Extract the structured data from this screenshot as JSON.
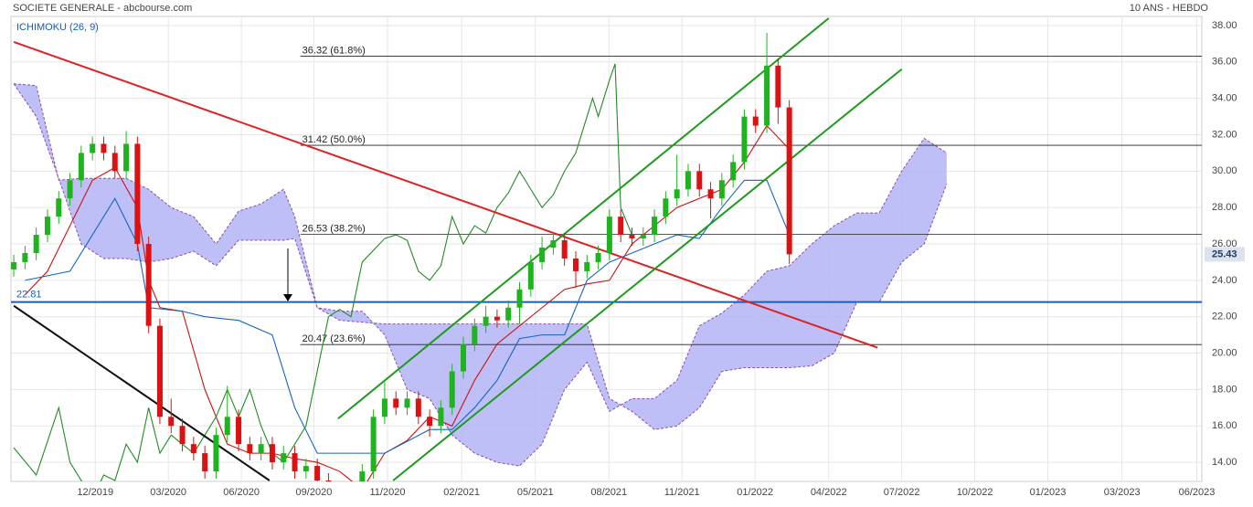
{
  "header": {
    "title": "SOCIETE GENERALE - abcbourse.com",
    "period": "10 ANS - HEBDO",
    "indicator": "ICHIMOKU (26, 9)"
  },
  "chart_data": {
    "type": "candlestick",
    "xlim": [
      -0.5,
      211.4
    ],
    "xticks": [
      {
        "value": 14.5,
        "label": "12/2019"
      },
      {
        "value": 27.5,
        "label": "03/2020"
      },
      {
        "value": 40.5,
        "label": "06/2020"
      },
      {
        "value": 53.4,
        "label": "09/2020"
      },
      {
        "value": 66.5,
        "label": "11/2020"
      },
      {
        "value": 79.7,
        "label": "02/2021"
      },
      {
        "value": 92.8,
        "label": "05/2021"
      },
      {
        "value": 105.9,
        "label": "08/2021"
      },
      {
        "value": 118.9,
        "label": "11/2021"
      },
      {
        "value": 131.9,
        "label": "01/2022"
      },
      {
        "value": 145,
        "label": "04/2022"
      },
      {
        "value": 158,
        "label": "07/2022"
      },
      {
        "value": 171,
        "label": "10/2022"
      },
      {
        "value": 184,
        "label": "01/2023"
      },
      {
        "value": 197.2,
        "label": "03/2023"
      },
      {
        "value": 210.5,
        "label": "06/2023"
      }
    ],
    "ylim": [
      12.95,
      38.5
    ],
    "yticks": [
      {
        "value": 14,
        "label": "14.00"
      },
      {
        "value": 16,
        "label": "16.00"
      },
      {
        "value": 18,
        "label": "18.00"
      },
      {
        "value": 20,
        "label": "20.00"
      },
      {
        "value": 22,
        "label": "22.00"
      },
      {
        "value": 24,
        "label": "24.00"
      },
      {
        "value": 26,
        "label": "26.00"
      },
      {
        "value": 28,
        "label": "28.00"
      },
      {
        "value": 30,
        "label": "30.00"
      },
      {
        "value": 32,
        "label": "32.00"
      },
      {
        "value": 34,
        "label": "34.00"
      },
      {
        "value": 36,
        "label": "36.00"
      },
      {
        "value": 38,
        "label": "38.00"
      }
    ],
    "grid": true,
    "up_color": "#1fb31f",
    "down_color": "#dd1111",
    "candles": {
      "x": [
        0,
        2,
        4,
        6,
        8,
        10,
        12,
        14,
        16,
        18,
        20,
        22,
        24,
        26,
        28,
        30,
        32,
        34,
        36,
        38,
        40,
        42,
        44,
        46,
        48,
        50,
        52,
        54,
        56,
        58,
        60,
        62,
        64,
        66,
        68,
        70,
        72,
        74,
        76,
        78,
        80,
        82,
        84,
        86,
        88,
        90,
        92,
        94,
        96,
        98,
        100,
        102,
        104,
        106,
        108,
        110,
        112,
        114,
        116,
        118,
        120,
        122,
        124,
        126,
        128,
        130,
        132,
        134,
        136,
        138
      ],
      "open": [
        24.6,
        25,
        25.5,
        26.5,
        27.5,
        28.5,
        29.5,
        31,
        31.5,
        31,
        30,
        31.5,
        26,
        21.5,
        16.5,
        16,
        15,
        14.5,
        13.5,
        15.5,
        16.5,
        15,
        14.5,
        15,
        14,
        14.5,
        13.5,
        13.8,
        13,
        12.5,
        12,
        12.5,
        13.5,
        16.5,
        17.5,
        17,
        17.5,
        16.5,
        16,
        17,
        19,
        20.5,
        21.5,
        22,
        21.8,
        22.5,
        23.5,
        25,
        25.8,
        26.2,
        25.2,
        24.5,
        25,
        25.5,
        27.5,
        26.5,
        26.3,
        26.5,
        27.5,
        28.5,
        29,
        30,
        29,
        28.5,
        29.5,
        30.5,
        33,
        32.5,
        35.8,
        33.5
      ],
      "high": [
        25.4,
        25.9,
        26.9,
        27.9,
        28.9,
        29.9,
        31.4,
        31.9,
        31.9,
        31.4,
        32.2,
        31.9,
        26.4,
        21.9,
        17.5,
        16.4,
        15.4,
        14.9,
        15.9,
        18.2,
        16.9,
        15.4,
        15.4,
        15.4,
        14.9,
        14.9,
        14.2,
        14.2,
        13.4,
        12.9,
        12.9,
        13.9,
        16.9,
        18.4,
        17.9,
        17.9,
        17.9,
        16.9,
        17.4,
        19.4,
        20.9,
        21.9,
        22.6,
        22.4,
        22.9,
        23.9,
        25.4,
        26.4,
        26.6,
        26.6,
        25.6,
        25.4,
        25.9,
        27.9,
        27.9,
        26.9,
        26.9,
        27.9,
        28.9,
        30.9,
        30.4,
        30.4,
        29.4,
        29.9,
        30.9,
        33.4,
        33.4,
        37.6,
        36.2,
        33.9
      ],
      "low": [
        24.2,
        24.6,
        25.1,
        26.1,
        27.1,
        28.1,
        29.1,
        30.6,
        30.6,
        29.6,
        29.6,
        25.6,
        21.1,
        16.1,
        15.6,
        14.6,
        14.1,
        13.1,
        13.1,
        15.1,
        14.6,
        14.1,
        14.1,
        13.6,
        13.6,
        13.1,
        13.1,
        12.6,
        12.1,
        11.6,
        11.6,
        12.1,
        13.1,
        16.1,
        16.6,
        16.6,
        16.1,
        15.4,
        15.6,
        16.6,
        18.6,
        20.1,
        21.1,
        21.4,
        21.4,
        21.6,
        23.1,
        24.6,
        25.4,
        24.8,
        23.6,
        24.1,
        24.6,
        25.1,
        26.1,
        25.9,
        25.9,
        26.1,
        27.1,
        28.1,
        28.6,
        28.6,
        27.4,
        28.1,
        29.1,
        30.1,
        32.1,
        32.1,
        32.6,
        24.9
      ],
      "close": [
        25,
        25.5,
        26.5,
        27.5,
        28.5,
        29.5,
        31,
        31.5,
        31,
        30,
        31.5,
        26,
        21.5,
        16.5,
        16,
        15,
        14.5,
        13.5,
        15.5,
        16.5,
        15,
        14.5,
        15,
        14,
        14.5,
        13.5,
        13.8,
        13,
        12.5,
        12,
        12.5,
        13.5,
        16.5,
        17.5,
        17,
        17.5,
        16.5,
        16,
        17,
        19,
        20.5,
        21.5,
        22,
        21.8,
        22.5,
        23.5,
        25,
        25.8,
        26.2,
        25.2,
        24.5,
        25,
        25.5,
        27.5,
        26.5,
        26.3,
        26.5,
        27.5,
        28.5,
        29,
        30,
        29,
        28.5,
        29.5,
        30.5,
        33,
        32.5,
        35.8,
        33.5,
        25.43
      ]
    },
    "cloud": {
      "fill": "#b4b4f6",
      "edge_color": "#8a4fa8",
      "x": [
        0,
        4,
        8,
        12,
        16,
        20,
        24,
        28,
        32,
        36,
        40,
        44,
        48,
        50,
        54,
        58,
        62,
        66,
        70,
        74,
        78,
        82,
        86,
        90,
        94,
        98,
        102,
        106,
        110,
        114,
        118,
        122,
        126,
        130,
        134,
        138,
        142,
        146,
        150,
        154,
        158,
        162,
        166
      ],
      "span_a": [
        34.8,
        34.7,
        29.5,
        29.6,
        29.6,
        29.6,
        29,
        28,
        27.5,
        26,
        27.8,
        28.2,
        29,
        27.5,
        22.5,
        22.3,
        22.3,
        21,
        18,
        17.5,
        15.5,
        14.5,
        14,
        13.8,
        15,
        18,
        19.5,
        16.8,
        17.5,
        17.5,
        18.5,
        21.5,
        22.2,
        23.2,
        24.5,
        24.8,
        26,
        27,
        27.7,
        27.7,
        30,
        31.8,
        31
      ],
      "span_b": [
        34.8,
        33,
        29.6,
        26,
        25.2,
        25.2,
        25,
        25.2,
        25.6,
        24.8,
        26.2,
        26.2,
        26.2,
        26.3,
        22.5,
        21.8,
        21.7,
        21.6,
        21.6,
        21.6,
        21.6,
        21.6,
        21.6,
        21.6,
        21.6,
        21.6,
        21.6,
        17.5,
        16.8,
        15.8,
        16,
        17,
        19,
        19.2,
        19.2,
        19.2,
        19.3,
        20,
        22.8,
        22.8,
        25,
        26,
        29.3
      ]
    },
    "lines": [
      {
        "color": "#cc1111",
        "x": [
          2,
          6,
          10,
          14,
          18,
          22,
          24,
          26,
          30,
          34,
          38,
          42,
          46,
          50,
          54,
          58,
          62,
          64,
          66,
          70,
          74,
          78,
          82,
          86,
          90,
          94,
          98,
          102,
          106,
          110,
          114,
          118,
          122,
          126,
          130,
          134,
          138
        ],
        "values": [
          23.2,
          24.5,
          27,
          29.5,
          30.2,
          28,
          24,
          22.5,
          22.3,
          18,
          15,
          14.5,
          14.5,
          14.2,
          14,
          13.5,
          12.5,
          13.5,
          14.5,
          15.2,
          16.5,
          16,
          18.5,
          20.5,
          21.5,
          22.5,
          23.5,
          23.8,
          24,
          26,
          27,
          28,
          28.5,
          29,
          30.5,
          32.5,
          31.2
        ]
      },
      {
        "color": "#1565c0",
        "x": [
          2,
          10,
          18,
          22,
          24,
          30,
          34,
          40,
          46,
          50,
          54,
          62,
          66,
          74,
          78,
          82,
          86,
          90,
          94,
          98,
          102,
          106,
          110,
          114,
          118,
          122,
          126,
          130,
          134,
          138
        ],
        "values": [
          24,
          24.5,
          28.5,
          26,
          22.5,
          22.3,
          22,
          21.8,
          21,
          17,
          14.5,
          14.5,
          14.5,
          15.8,
          15.8,
          17,
          18.5,
          20.8,
          21,
          21,
          24,
          25,
          25.5,
          26,
          26.5,
          26.3,
          28,
          29.5,
          29.5,
          26.5
        ]
      },
      {
        "color": "#228b22",
        "x": [
          0,
          4,
          8,
          10,
          14,
          16,
          18,
          20,
          22,
          24,
          26,
          28,
          32,
          36,
          38,
          40,
          42,
          44,
          46,
          48,
          52,
          54,
          56,
          58,
          60,
          62,
          66,
          68,
          70,
          72,
          74,
          76,
          78,
          80,
          82,
          84,
          86,
          88,
          90,
          92,
          94,
          96,
          98,
          100,
          102,
          103,
          104,
          106,
          107,
          108,
          110
        ],
        "values": [
          14.8,
          13.3,
          17,
          14,
          12,
          13.3,
          13,
          15,
          14,
          17,
          14.5,
          15.5,
          14.5,
          16.5,
          18,
          16.5,
          18,
          16,
          14.5,
          14,
          16,
          19,
          22,
          22.4,
          22,
          25,
          26.3,
          26.5,
          26.2,
          24.5,
          24,
          24.8,
          27.5,
          26,
          27,
          26.6,
          28,
          28.8,
          30,
          29,
          28,
          28.7,
          30,
          31,
          33,
          34,
          33,
          35,
          35.9,
          28,
          26.5
        ]
      }
    ],
    "fib_levels": [
      {
        "value": 36.32,
        "label": "36.32  (61.8%)"
      },
      {
        "value": 31.42,
        "label": "31.42  (50.0%)"
      },
      {
        "value": 26.53,
        "label": "26.53  (38.2%)"
      },
      {
        "value": 20.47,
        "label": "20.47  (23.6%)"
      }
    ],
    "fib_start": 51,
    "support": 22.81,
    "support_color": "#1a5fb4",
    "last_price": 25.43,
    "trendlines": [
      {
        "color": "#dd2222",
        "x": [
          0,
          153.7
        ],
        "y": [
          37.1,
          20.3
        ]
      },
      {
        "color": "#1e9a1e",
        "x": [
          57.7,
          145
        ],
        "y": [
          16.4,
          38.4
        ]
      },
      {
        "color": "#1e9a1e",
        "x": [
          67.5,
          158
        ],
        "y": [
          13,
          35.6
        ]
      },
      {
        "color": "#111111",
        "x": [
          0,
          45.5
        ],
        "y": [
          22.6,
          13
        ]
      }
    ]
  }
}
